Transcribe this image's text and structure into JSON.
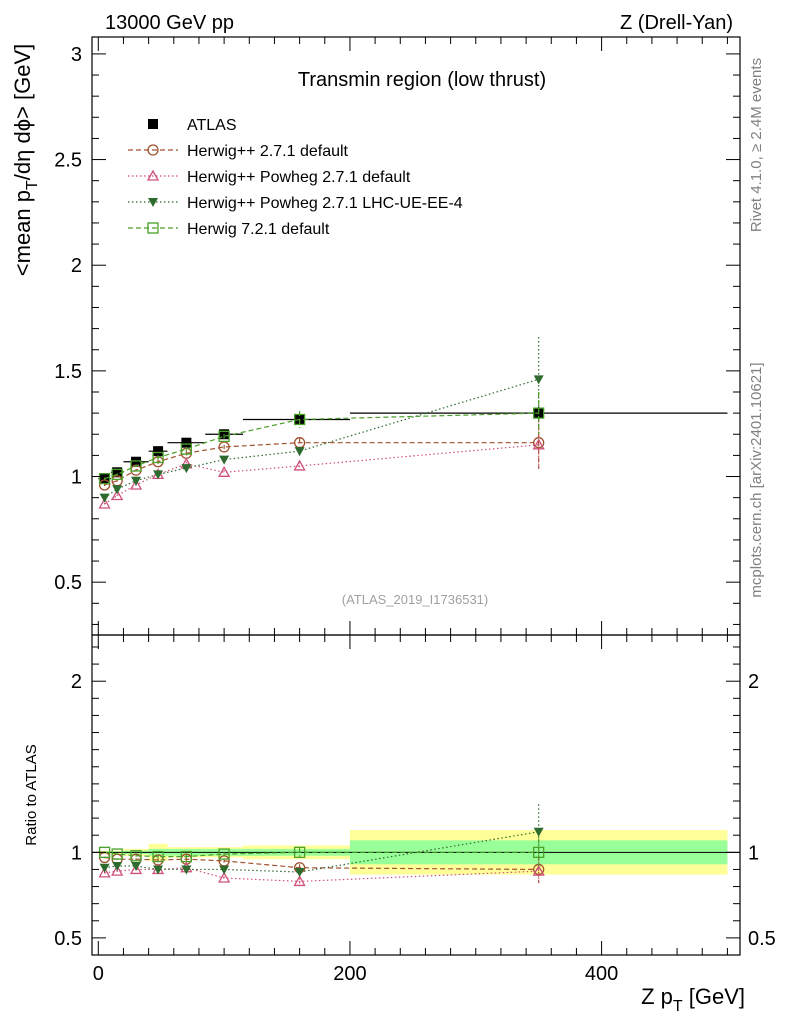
{
  "header": {
    "left": "13000 GeV pp",
    "right": "Z (Drell-Yan)"
  },
  "side_labels": {
    "top": "Rivet 4.1.0, ≥ 2.4M events",
    "bottom": "mcplots.cern.ch [arXiv:2401.10621]"
  },
  "colors": {
    "atlas": "#000000",
    "herwigpp": "#a0522d",
    "powheg": "#d0507a",
    "powheg_ue": "#2e6b2e",
    "herwig7": "#4aa02a",
    "band_inner": "#99ff99",
    "band_outer": "#ffff99"
  },
  "chart_data": [
    {
      "type": "line",
      "title": "Transmin region (low thrust)",
      "watermark": "(ATLAS_2019_I1736531)",
      "xlabel": "Z p",
      "xlabel_sub": "T",
      "xlabel_unit": " [GeV]",
      "ylabel_parts": {
        "a": "<mean p",
        "sub": "T",
        "b": "/dη dϕ> [GeV]"
      },
      "xlim": [
        -5,
        510
      ],
      "ylim": [
        0.25,
        3.08
      ],
      "yticks": [
        0.5,
        1,
        1.5,
        2,
        2.5,
        3
      ],
      "ytick_labels": [
        "0.5",
        "1",
        "1.5",
        "2",
        "2.5",
        "3"
      ],
      "x": [
        5,
        15,
        30,
        47.5,
        70,
        100,
        160,
        350
      ],
      "xerr": [
        [
          0,
          10
        ],
        [
          10,
          20
        ],
        [
          20,
          40
        ],
        [
          40,
          55
        ],
        [
          55,
          85
        ],
        [
          85,
          115
        ],
        [
          115,
          200
        ],
        [
          200,
          500
        ]
      ],
      "series": [
        {
          "name": "ATLAS",
          "key": "atlas",
          "marker": "square-filled",
          "line": "none",
          "values": [
            0.99,
            1.02,
            1.07,
            1.12,
            1.16,
            1.2,
            1.27,
            1.3
          ],
          "err": [
            0.01,
            0.01,
            0.01,
            0.01,
            0.015,
            0.015,
            0.02,
            0.03
          ]
        },
        {
          "name": "Herwig++ 2.7.1 default",
          "key": "herwigpp",
          "marker": "circle-open",
          "line": "dashed",
          "values": [
            0.96,
            0.98,
            1.03,
            1.07,
            1.11,
            1.14,
            1.16,
            1.16
          ],
          "err": [
            0.005,
            0.005,
            0.005,
            0.01,
            0.01,
            0.01,
            0.02,
            0.12
          ]
        },
        {
          "name": "Herwig++ Powheg 2.7.1 default",
          "key": "powheg",
          "marker": "triangle-open",
          "line": "dotted",
          "values": [
            0.87,
            0.91,
            0.96,
            1.01,
            1.06,
            1.02,
            1.05,
            1.15
          ],
          "err": [
            0.005,
            0.005,
            0.005,
            0.01,
            0.01,
            0.01,
            0.02,
            0.12
          ]
        },
        {
          "name": "Herwig++ Powheg 2.7.1 LHC-UE-EE-4",
          "key": "powheg_ue",
          "marker": "triangle-down-filled",
          "line": "dotted",
          "values": [
            0.9,
            0.94,
            0.98,
            1.01,
            1.04,
            1.08,
            1.12,
            1.46
          ],
          "err": [
            0.005,
            0.005,
            0.005,
            0.01,
            0.01,
            0.01,
            0.02,
            0.2
          ]
        },
        {
          "name": "Herwig 7.2.1 default",
          "key": "herwig7",
          "marker": "square-open",
          "line": "dashed",
          "values": [
            0.99,
            1.01,
            1.05,
            1.09,
            1.13,
            1.19,
            1.27,
            1.3
          ],
          "err": [
            0.005,
            0.005,
            0.005,
            0.01,
            0.01,
            0.01,
            0.04,
            0.1
          ]
        }
      ]
    },
    {
      "type": "line",
      "ylabel": "Ratio to ATLAS",
      "xlim": [
        -5,
        510
      ],
      "ylim": [
        0.4,
        2.27
      ],
      "yticks": [
        0.5,
        1,
        2
      ],
      "ytick_labels": [
        "0.5",
        "1",
        "2"
      ],
      "xticks": [
        0,
        200,
        400
      ],
      "xtick_labels": [
        "0",
        "200",
        "400"
      ],
      "bands": {
        "inner": [
          0.995,
          0.995,
          0.99,
          0.98,
          0.98,
          0.98,
          0.98,
          0.93
        ],
        "inner_hi": [
          1.005,
          1.005,
          1.01,
          1.02,
          1.02,
          1.02,
          1.02,
          1.07
        ],
        "outer": [
          0.99,
          0.99,
          0.98,
          0.95,
          0.97,
          0.97,
          0.96,
          0.87
        ],
        "outer_hi": [
          1.01,
          1.01,
          1.02,
          1.05,
          1.03,
          1.03,
          1.04,
          1.13
        ]
      },
      "series": [
        {
          "key": "herwigpp",
          "values": [
            0.97,
            0.96,
            0.96,
            0.955,
            0.96,
            0.95,
            0.91,
            0.9
          ],
          "err": [
            0.005,
            0.005,
            0.005,
            0.01,
            0.01,
            0.01,
            0.02,
            0.08
          ]
        },
        {
          "key": "powheg",
          "values": [
            0.88,
            0.89,
            0.9,
            0.9,
            0.91,
            0.85,
            0.83,
            0.89
          ],
          "err": [
            0.005,
            0.005,
            0.005,
            0.01,
            0.01,
            0.01,
            0.02,
            0.08
          ]
        },
        {
          "key": "powheg_ue",
          "values": [
            0.91,
            0.92,
            0.92,
            0.9,
            0.9,
            0.9,
            0.885,
            1.12
          ],
          "err": [
            0.005,
            0.005,
            0.005,
            0.01,
            0.01,
            0.01,
            0.02,
            0.16
          ]
        },
        {
          "key": "herwig7",
          "values": [
            1.0,
            0.99,
            0.98,
            0.975,
            0.975,
            0.99,
            1.0,
            1.0
          ],
          "err": [
            0.005,
            0.005,
            0.005,
            0.01,
            0.01,
            0.01,
            0.03,
            0.08
          ]
        }
      ]
    }
  ]
}
